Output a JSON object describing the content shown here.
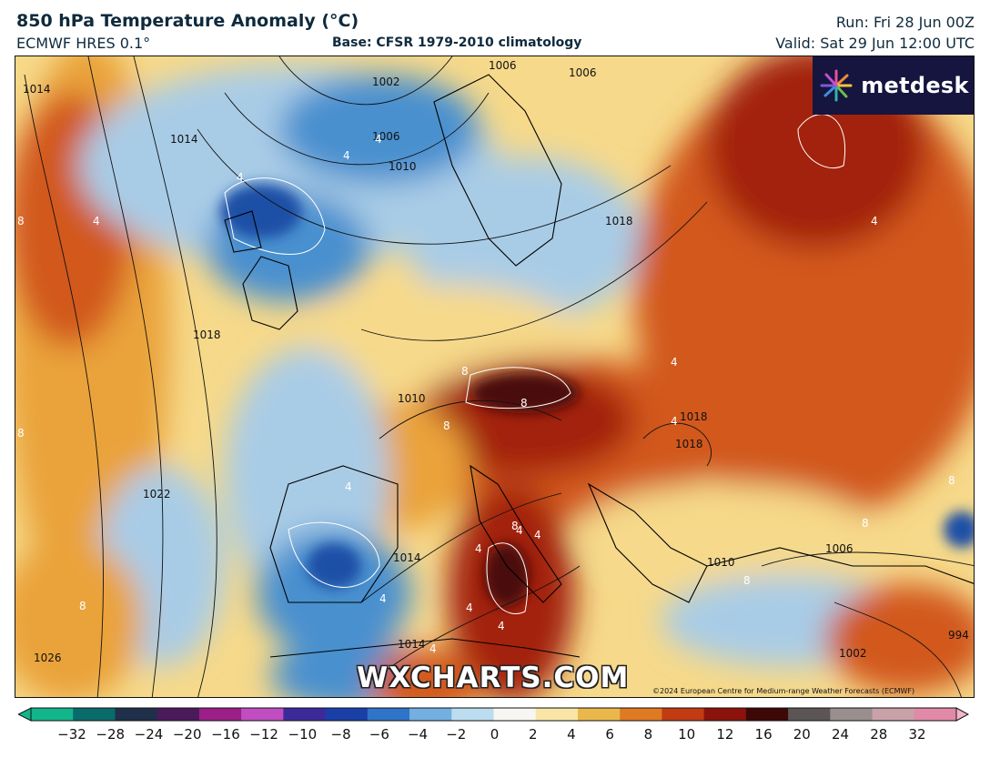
{
  "header": {
    "title": "850 hPa Temperature Anomaly (°C)",
    "model": "ECMWF HRES 0.1°",
    "base": "Base: CFSR 1979-2010 climatology",
    "run": "Run: Fri 28 Jun 00Z",
    "valid": "Valid: Sat 29 Jun 12:00 UTC"
  },
  "branding": {
    "logo_text": "metdesk",
    "watermark": "WXCHARTS.COM",
    "copyright": "©2024 European Centre for Medium-range Weather Forecasts (ECMWF)"
  },
  "map": {
    "region": "Europe",
    "isobar_labels": [
      "1014",
      "1002",
      "1006",
      "1006",
      "1006",
      "1010",
      "1014",
      "1018",
      "1018",
      "1022",
      "1026",
      "1010",
      "1014",
      "1018",
      "1018",
      "1014",
      "1006",
      "1010",
      "1002",
      "994"
    ],
    "anomaly_labels": [
      "4",
      "4",
      "4",
      "8",
      "4",
      "8",
      "8",
      "8",
      "4",
      "4",
      "4",
      "4",
      "4",
      "8",
      "8",
      "8",
      "8",
      "8",
      "8",
      "4",
      "4",
      "4",
      "4",
      "4",
      "4"
    ],
    "colors": {
      "cold_deep": "#1e4fa6",
      "cold": "#4a90cf",
      "cool": "#a9cce6",
      "neutral": "#f3f1ee",
      "warm_light": "#f6d98a",
      "warm": "#eaa33a",
      "hot": "#d2581a",
      "very_hot": "#a3200d",
      "extreme": "#4a0a08"
    }
  },
  "colorbar": {
    "ticks": [
      "−32",
      "−28",
      "−24",
      "−20",
      "−16",
      "−12",
      "−10",
      "−8",
      "−6",
      "−4",
      "−2",
      "0",
      "2",
      "4",
      "6",
      "8",
      "10",
      "12",
      "16",
      "20",
      "24",
      "28",
      "32"
    ],
    "stops": [
      "#13b58a",
      "#0a6b6b",
      "#20304a",
      "#4a1a5a",
      "#9b1f86",
      "#c04ec0",
      "#3d2a9a",
      "#1a3fa8",
      "#2f74c8",
      "#73afe0",
      "#bcdcef",
      "#f8f6f2",
      "#f9e6a6",
      "#eab84a",
      "#df7a23",
      "#c23b12",
      "#8c120c",
      "#3d0806",
      "#5c5555",
      "#9a8f8f",
      "#c9a1a8",
      "#e08aa8",
      "#f3b6cb"
    ]
  }
}
